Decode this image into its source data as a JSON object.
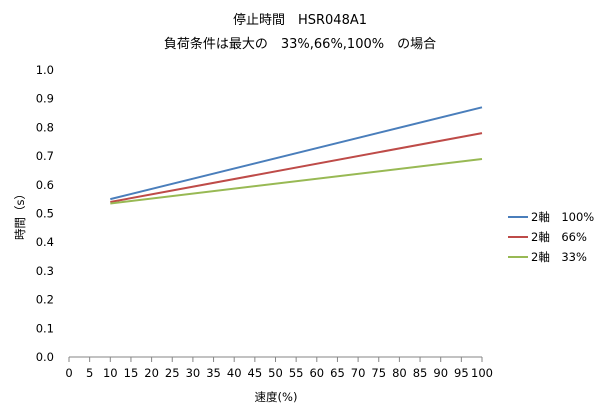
{
  "chart_data": {
    "type": "line",
    "title": "停止時間　HSR048A1",
    "subtitle": "負荷条件は最大の　33%,66%,100%　の場合",
    "xlabel": "速度(%)",
    "ylabel": "時間（s）",
    "x_ticks": [
      "0",
      "5",
      "10",
      "15",
      "20",
      "25",
      "30",
      "35",
      "40",
      "45",
      "50",
      "55",
      "60",
      "65",
      "70",
      "75",
      "80",
      "85",
      "90",
      "95",
      "100"
    ],
    "y_ticks": [
      "0.0",
      "0.1",
      "0.2",
      "0.3",
      "0.4",
      "0.5",
      "0.6",
      "0.7",
      "0.8",
      "0.9",
      "1.0"
    ],
    "xlim": [
      0,
      100
    ],
    "ylim": [
      0,
      1.0
    ],
    "grid": false,
    "legend_position": "right",
    "x": [
      10,
      100
    ],
    "series": [
      {
        "name": "2軸　100%",
        "color": "#4a7ebb",
        "values": [
          0.55,
          0.87
        ]
      },
      {
        "name": "2軸　66%",
        "color": "#be4b48",
        "values": [
          0.54,
          0.78
        ]
      },
      {
        "name": "2軸　33%",
        "color": "#98b954",
        "values": [
          0.535,
          0.69
        ]
      }
    ]
  }
}
